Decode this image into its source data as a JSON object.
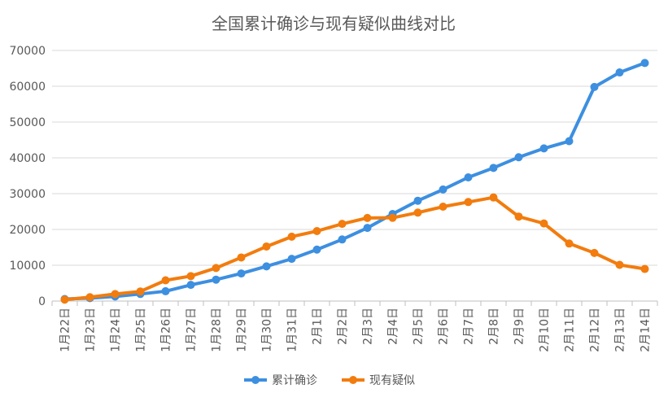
{
  "chart_data": {
    "type": "line",
    "title": "全国累计确诊与现有疑似曲线对比",
    "xlabel": "",
    "ylabel": "",
    "ylim": [
      0,
      70000
    ],
    "yticks": [
      "0",
      "10000",
      "20000",
      "30000",
      "40000",
      "50000",
      "60000",
      "70000"
    ],
    "grid": true,
    "legend_position": "bottom",
    "categories": [
      "1月22日",
      "1月23日",
      "1月24日",
      "1月25日",
      "1月26日",
      "1月27日",
      "1月28日",
      "1月29日",
      "1月30日",
      "1月31日",
      "2月1日",
      "2月2日",
      "2月3日",
      "2月4日",
      "2月5日",
      "2月6日",
      "2月7日",
      "2月8日",
      "2月9日",
      "2月10日",
      "2月11日",
      "2月12日",
      "2月13日",
      "2月14日"
    ],
    "series": [
      {
        "name": "累计确诊",
        "color": "#3d8fe0",
        "values": [
          571,
          830,
          1287,
          1975,
          2744,
          4515,
          5974,
          7711,
          9692,
          11791,
          14380,
          17205,
          20438,
          24324,
          28018,
          31161,
          34546,
          37198,
          40171,
          42638,
          44653,
          59804,
          63851,
          66492
        ]
      },
      {
        "name": "现有疑似",
        "color": "#f27c0e",
        "values": [
          393,
          1072,
          1965,
          2684,
          5794,
          6973,
          9239,
          12167,
          15238,
          17988,
          19544,
          21558,
          23214,
          23260,
          24702,
          26359,
          27657,
          28942,
          23589,
          21675,
          16067,
          13435,
          10109,
          8969
        ]
      }
    ]
  }
}
